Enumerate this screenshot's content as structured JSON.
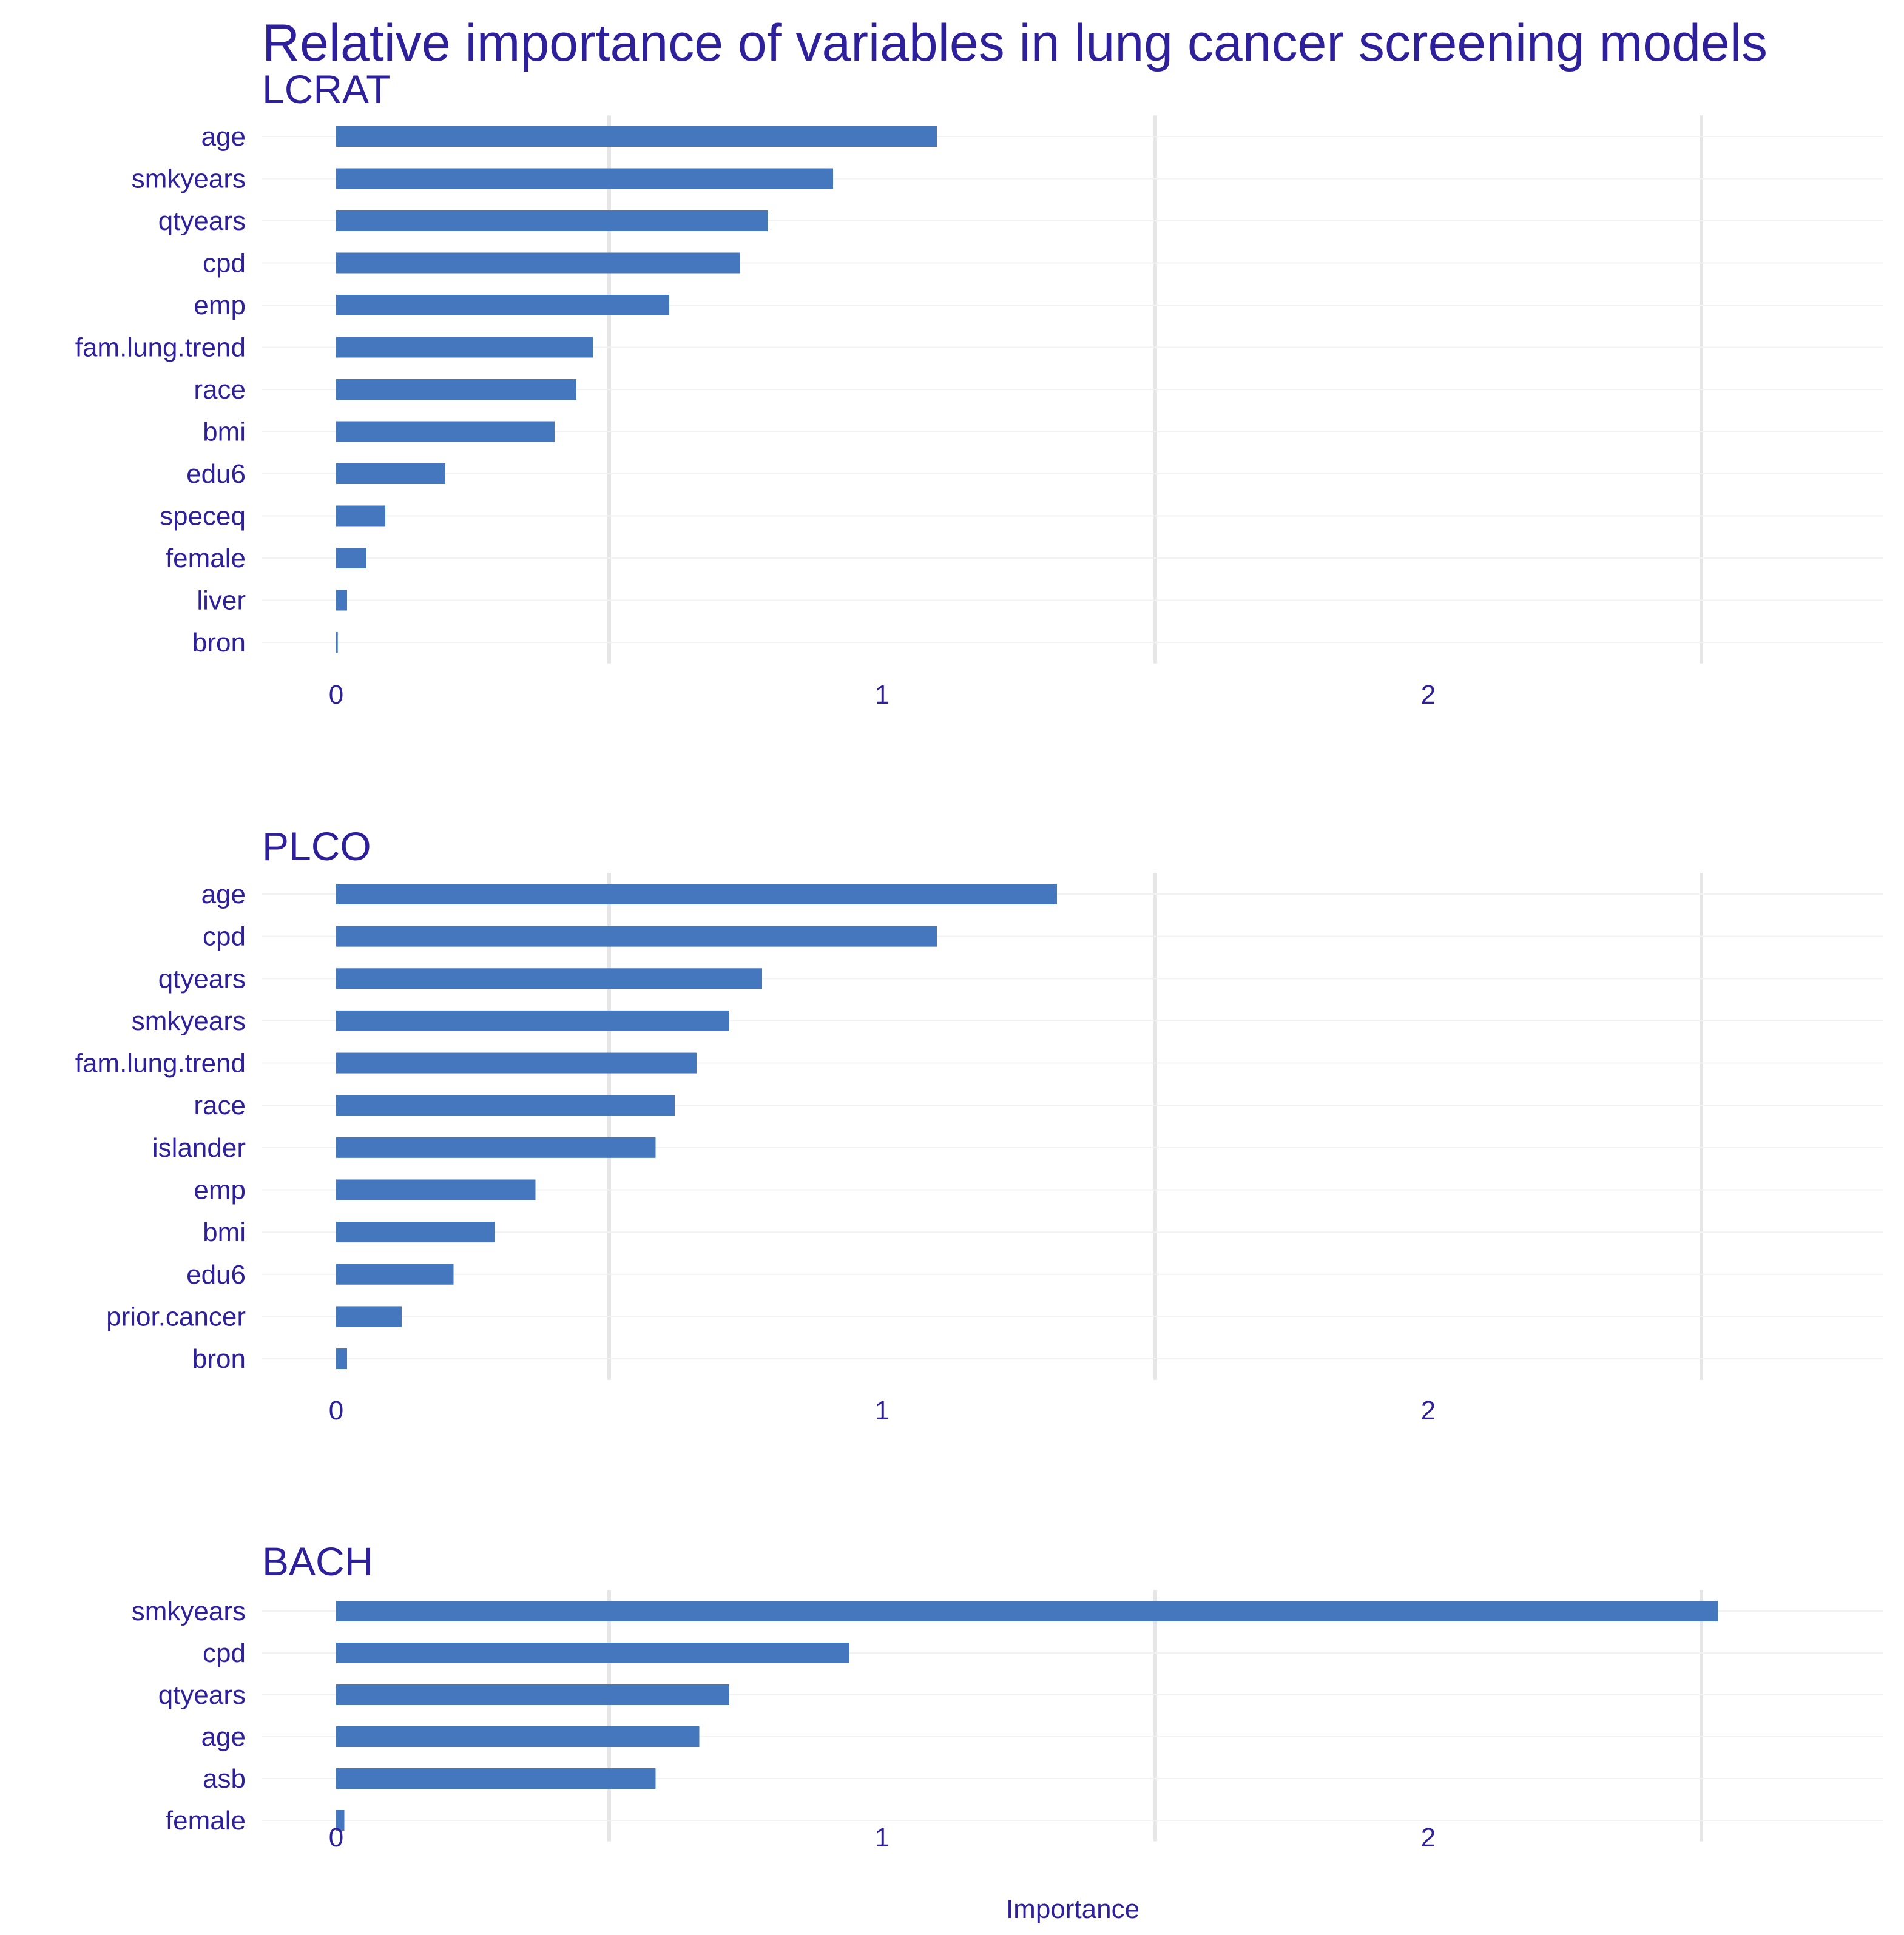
{
  "chart_data": {
    "type": "bar",
    "orientation": "horizontal",
    "title": "Relative importance of variables in lung cancer screening models",
    "xlabel": "Importance",
    "xlim": [
      -0.27,
      2.84
    ],
    "xticks": [
      0,
      1,
      2
    ],
    "grid": true,
    "bar_color": "#4577BF",
    "text_color": "#2E1F9B",
    "grid_color": "#E6E6E6",
    "panels": [
      {
        "name": "LCRAT",
        "categories": [
          "age",
          "smkyears",
          "qtyears",
          "cpd",
          "emp",
          "fam.lung.trend",
          "race",
          "bmi",
          "edu6",
          "speceq",
          "female",
          "liver",
          "bron"
        ],
        "values": [
          1.1,
          0.91,
          0.79,
          0.74,
          0.61,
          0.47,
          0.44,
          0.4,
          0.2,
          0.09,
          0.055,
          0.02,
          0.003
        ]
      },
      {
        "name": "PLCO",
        "categories": [
          "age",
          "cpd",
          "qtyears",
          "smkyears",
          "fam.lung.trend",
          "race",
          "islander",
          "emp",
          "bmi",
          "edu6",
          "prior.cancer",
          "bron"
        ],
        "values": [
          1.32,
          1.1,
          0.78,
          0.72,
          0.66,
          0.62,
          0.585,
          0.365,
          0.29,
          0.215,
          0.12,
          0.02
        ]
      },
      {
        "name": "BACH",
        "categories": [
          "smkyears",
          "cpd",
          "qtyears",
          "age",
          "asb",
          "female"
        ],
        "values": [
          2.53,
          0.94,
          0.72,
          0.665,
          0.585,
          0.015
        ]
      }
    ]
  }
}
